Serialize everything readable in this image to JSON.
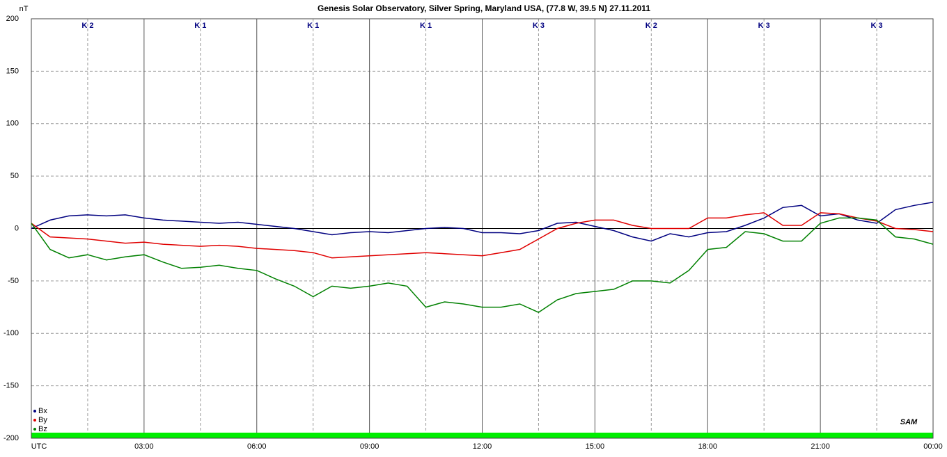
{
  "chart_data": {
    "type": "line",
    "title": "Genesis Solar Observatory, Silver Spring, Maryland USA, (77.8 W, 39.5 N)  27.11.2011",
    "y_label": "nT",
    "logo": "SAM",
    "k_labels": [
      "K 2",
      "K 1",
      "K 1",
      "K 1",
      "K 3",
      "K 2",
      "K 3",
      "K 3"
    ],
    "x": [
      0,
      0.5,
      1,
      1.5,
      2,
      2.5,
      3,
      3.5,
      4,
      4.5,
      5,
      5.5,
      6,
      6.5,
      7,
      7.5,
      8,
      8.5,
      9,
      9.5,
      10,
      10.5,
      11,
      11.5,
      12,
      12.5,
      13,
      13.5,
      14,
      14.5,
      15,
      15.5,
      16,
      16.5,
      17,
      17.5,
      18,
      18.5,
      19,
      19.5,
      20,
      20.5,
      21,
      21.5,
      22,
      22.5,
      23,
      23.5,
      24
    ],
    "xlim": [
      0,
      24
    ],
    "xticks": [
      {
        "value": 0,
        "label": "UTC"
      },
      {
        "value": 3,
        "label": "03:00"
      },
      {
        "value": 6,
        "label": "06:00"
      },
      {
        "value": 9,
        "label": "09:00"
      },
      {
        "value": 12,
        "label": "12:00"
      },
      {
        "value": 15,
        "label": "15:00"
      },
      {
        "value": 18,
        "label": "18:00"
      },
      {
        "value": 21,
        "label": "21:00"
      },
      {
        "value": 24,
        "label": "00:00"
      }
    ],
    "ylim": [
      -200,
      200
    ],
    "yticks": [
      -200,
      -150,
      -100,
      -50,
      0,
      50,
      100,
      150,
      200
    ],
    "grid": true,
    "legend": "lower left",
    "series": [
      {
        "name": "Bx",
        "color": "#000080",
        "values": [
          0,
          8,
          12,
          13,
          12,
          13,
          10,
          8,
          7,
          6,
          5,
          6,
          4,
          2,
          0,
          -3,
          -6,
          -4,
          -3,
          -4,
          -2,
          0,
          1,
          0,
          -4,
          -4,
          -5,
          -2,
          5,
          6,
          2,
          -2,
          -8,
          -12,
          -5,
          -8,
          -4,
          -3,
          3,
          10,
          20,
          22,
          12,
          14,
          8,
          5,
          18,
          22,
          25
        ]
      },
      {
        "name": "By",
        "color": "#e00000",
        "values": [
          5,
          -8,
          -9,
          -10,
          -12,
          -14,
          -13,
          -15,
          -16,
          -17,
          -16,
          -17,
          -19,
          -20,
          -21,
          -23,
          -28,
          -27,
          -26,
          -25,
          -24,
          -23,
          -24,
          -25,
          -26,
          -23,
          -20,
          -10,
          0,
          5,
          8,
          8,
          3,
          0,
          0,
          0,
          10,
          10,
          13,
          15,
          3,
          3,
          15,
          14,
          10,
          7,
          0,
          -1,
          -3
        ]
      },
      {
        "name": "Bz",
        "color": "#008000",
        "values": [
          5,
          -20,
          -28,
          -25,
          -30,
          -27,
          -25,
          -32,
          -38,
          -37,
          -35,
          -38,
          -40,
          -48,
          -55,
          -65,
          -55,
          -57,
          -55,
          -52,
          -55,
          -75,
          -70,
          -72,
          -75,
          -75,
          -72,
          -80,
          -68,
          -62,
          -60,
          -58,
          -50,
          -50,
          -52,
          -40,
          -20,
          -18,
          -3,
          -5,
          -12,
          -12,
          5,
          10,
          10,
          8,
          -8,
          -10,
          -15
        ]
      }
    ]
  }
}
